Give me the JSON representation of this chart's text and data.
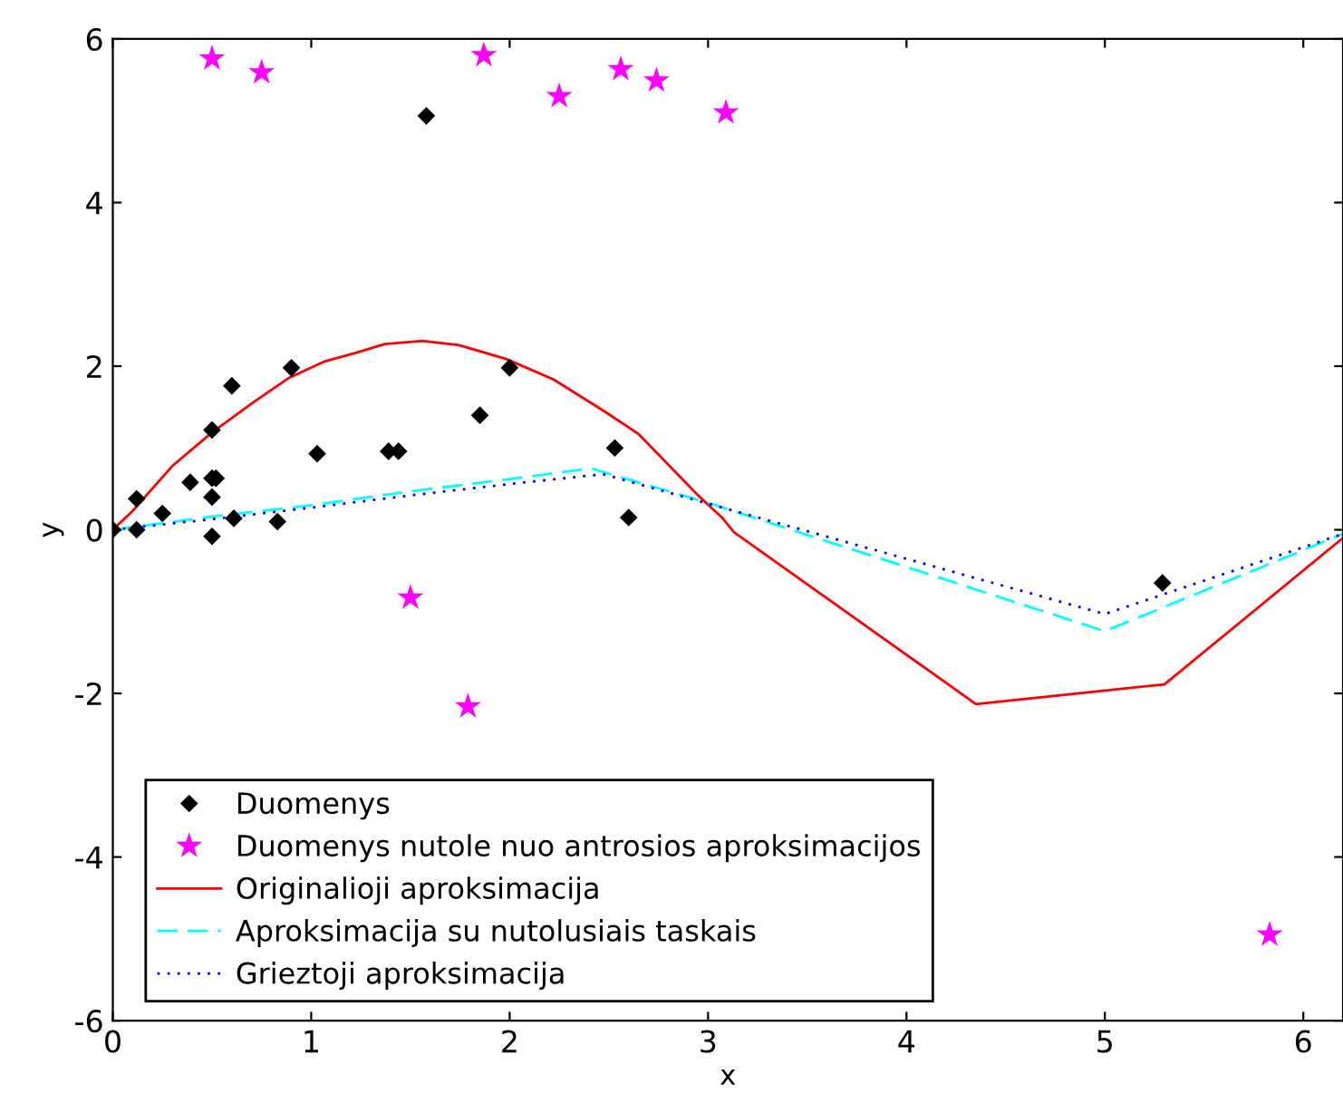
{
  "chart_data": {
    "type": "scatter",
    "xlabel": "x",
    "ylabel": "y",
    "xlim": [
      0,
      6.2
    ],
    "ylim": [
      -6,
      6
    ],
    "xticks": [
      0,
      1,
      2,
      3,
      4,
      5,
      6
    ],
    "yticks": [
      -6,
      -4,
      -2,
      0,
      2,
      4,
      6
    ],
    "grid": false,
    "legend": "bottom left",
    "series": [
      {
        "name": "Duomenys",
        "color": "#000000",
        "marker": "diamond",
        "x": [
          0,
          0.12,
          0.12,
          0.25,
          0.39,
          0.5,
          0.5,
          0.52,
          0.5,
          0.5,
          0.6,
          0.61,
          0.83,
          0.9,
          1.03,
          1.39,
          1.44,
          1.58,
          1.85,
          2.0,
          2.53,
          2.6,
          5.29
        ],
        "values": [
          0,
          0,
          0.38,
          0.2,
          0.58,
          1.22,
          0.63,
          0.63,
          0.4,
          -0.08,
          1.76,
          0.14,
          0.1,
          1.98,
          0.93,
          0.96,
          0.96,
          5.06,
          1.4,
          1.98,
          1.0,
          0.15,
          -0.65
        ]
      },
      {
        "name": "Duomenys nutole nuo antrosios aproksimacijos",
        "color": "#ff00ff",
        "marker": "star",
        "x": [
          0.5,
          0.75,
          1.87,
          2.25,
          2.56,
          2.74,
          3.09,
          1.5,
          1.79,
          5.83
        ],
        "values": [
          5.76,
          5.59,
          5.8,
          5.3,
          5.63,
          5.49,
          5.1,
          -0.83,
          -2.16,
          -4.95
        ]
      },
      {
        "name": "Originalioji aproksimacija",
        "type": "line",
        "color": "#ff0000",
        "line_style": "solid",
        "x": [
          0,
          0.1,
          0.3,
          0.5,
          0.71,
          0.89,
          1.07,
          1.22,
          1.37,
          1.56,
          1.74,
          1.98,
          2.22,
          2.47,
          2.65,
          2.83,
          2.95,
          3.07,
          3.13,
          4.35,
          5.3,
          6.2
        ],
        "values": [
          0,
          0.23,
          0.78,
          1.19,
          1.56,
          1.86,
          2.06,
          2.16,
          2.27,
          2.31,
          2.26,
          2.09,
          1.84,
          1.46,
          1.17,
          0.72,
          0.42,
          0.15,
          -0.03,
          -2.13,
          -1.89,
          -0.1
        ]
      },
      {
        "name": "Aproksimacija su nutolusiais taskais",
        "type": "line",
        "color": "#00ffff",
        "line_style": "dashed",
        "x": [
          0,
          0.5,
          1,
          1.5,
          2,
          2.41,
          3,
          5,
          6.2
        ],
        "values": [
          0,
          0.16,
          0.3,
          0.47,
          0.62,
          0.75,
          0.33,
          -1.24,
          -0.05
        ]
      },
      {
        "name": "Grieztoji aproksimacija",
        "type": "line",
        "color": "#0000ff",
        "line_style": "dotted",
        "x": [
          0,
          0.5,
          1,
          1.5,
          2,
          2.47,
          3,
          5,
          6.2
        ],
        "values": [
          0,
          0.13,
          0.27,
          0.42,
          0.56,
          0.68,
          0.32,
          -1.03,
          -0.05
        ]
      }
    ]
  }
}
